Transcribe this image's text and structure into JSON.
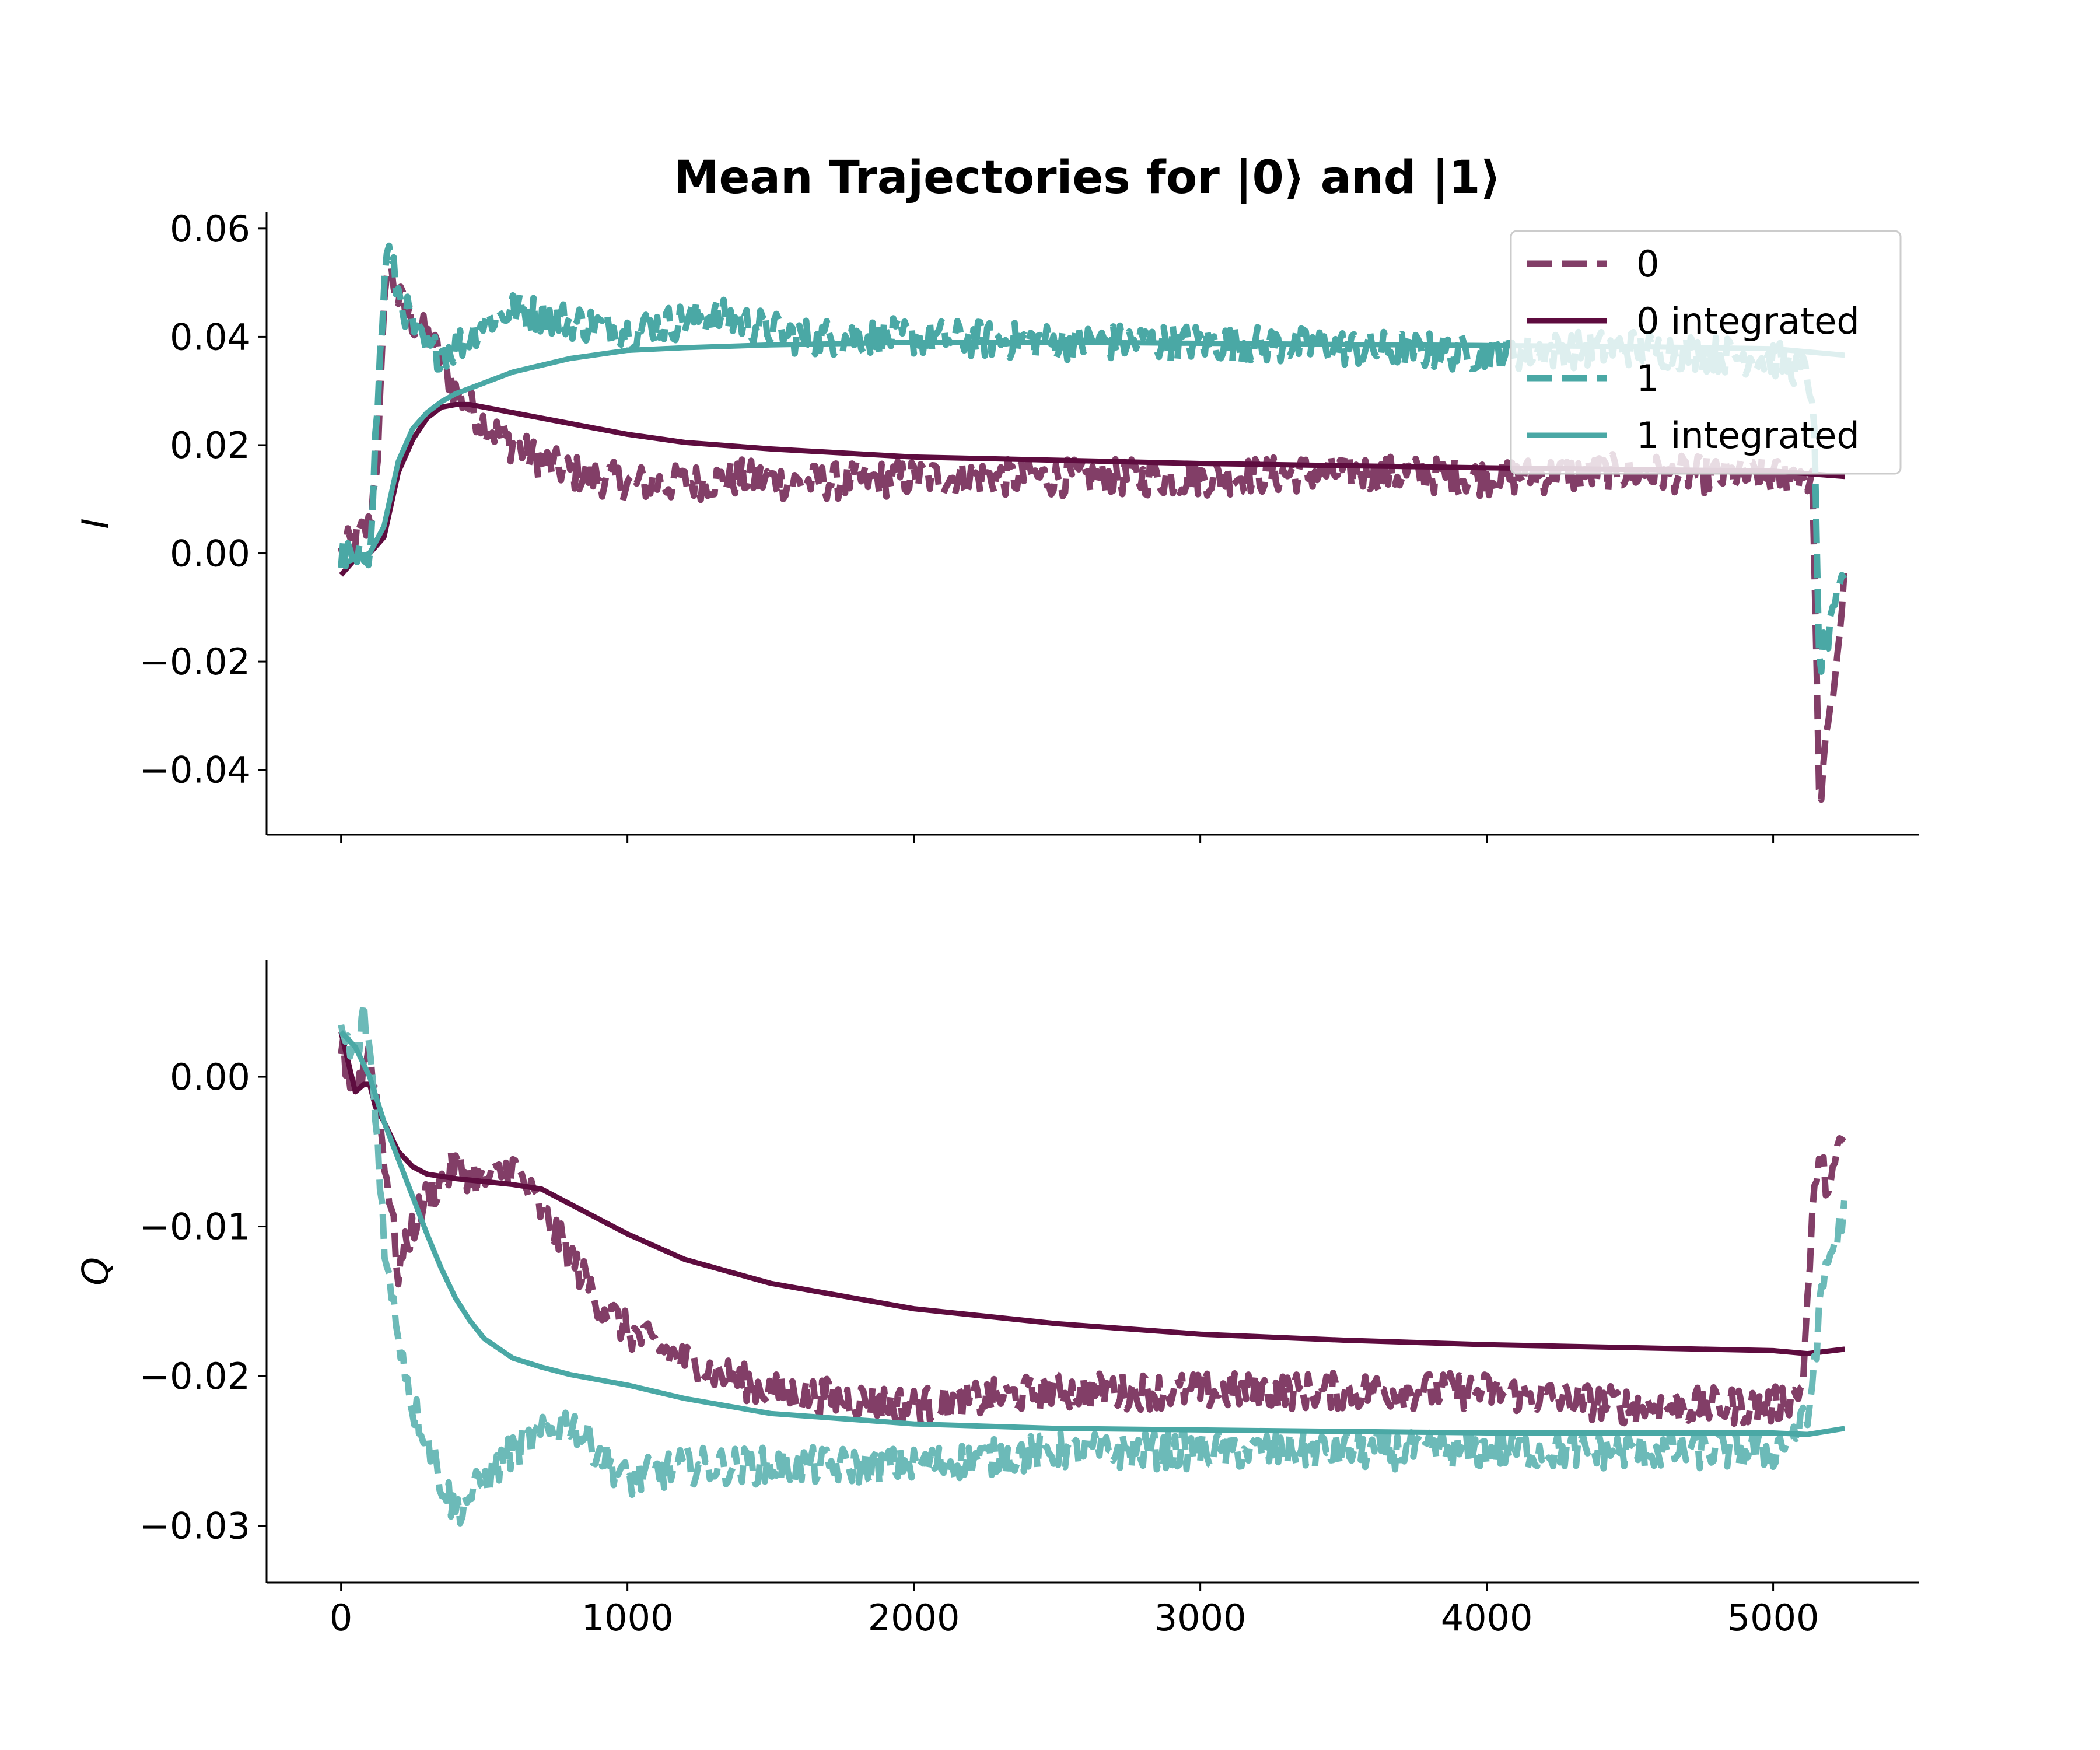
{
  "chart_data": {
    "type": "line",
    "title": "Mean Trajectories for |0⟩ and |1⟩",
    "legend_position": "top-right",
    "colors": {
      "zero": "#823e67",
      "zero_integrated": "#5e0c3f",
      "one": "#4aa8a5",
      "one_integrated": "#4aa8a5"
    },
    "legend": [
      {
        "label": "0",
        "style": "dashed",
        "color": "#823e67"
      },
      {
        "label": "0 integrated",
        "style": "solid",
        "color": "#5e0c3f"
      },
      {
        "label": "1",
        "style": "dashed",
        "color": "#4aa8a5"
      },
      {
        "label": "1 integrated",
        "style": "solid",
        "color": "#4aa8a5"
      }
    ],
    "xticks": [
      "0",
      "1000",
      "2000",
      "3000",
      "4000",
      "5000"
    ],
    "xlim": [
      -260,
      5510
    ],
    "panels": [
      {
        "ylabel": "I",
        "ylim": [
          -0.052,
          0.063
        ],
        "yticks": [
          "0.06",
          "0.04",
          "0.02",
          "0.00",
          "−0.02",
          "−0.04"
        ],
        "ytick_values": [
          0.06,
          0.04,
          0.02,
          0.0,
          -0.02,
          -0.04
        ],
        "series": [
          {
            "name": "0",
            "style": "dashed",
            "color": "#823e67",
            "x": [
              0,
              60,
              100,
              130,
              160,
              200,
              250,
              300,
              350,
              400,
              500,
              600,
              700,
              800,
              900,
              1000,
              1200,
              1400,
              1600,
              2000,
              2500,
              3000,
              3500,
              4000,
              4500,
              5000,
              5100,
              5140,
              5160,
              5200,
              5250
            ],
            "y": [
              0.0,
              0.003,
              0.005,
              0.02,
              0.054,
              0.047,
              0.043,
              0.04,
              0.036,
              0.03,
              0.024,
              0.02,
              0.017,
              0.015,
              0.014,
              0.013,
              0.013,
              0.014,
              0.013,
              0.014,
              0.014,
              0.014,
              0.015,
              0.014,
              0.015,
              0.014,
              0.015,
              0.012,
              -0.046,
              -0.03,
              -0.005
            ]
          },
          {
            "name": "0 integrated",
            "style": "solid",
            "color": "#5e0c3f",
            "x": [
              0,
              50,
              100,
              150,
              200,
              250,
              300,
              350,
              400,
              450,
              500,
              600,
              800,
              1000,
              1200,
              1500,
              2000,
              2500,
              3000,
              3500,
              4000,
              4500,
              5000,
              5250
            ],
            "y": [
              -0.004,
              -0.001,
              0.0,
              0.003,
              0.015,
              0.021,
              0.025,
              0.027,
              0.0275,
              0.0275,
              0.027,
              0.026,
              0.024,
              0.022,
              0.0205,
              0.0193,
              0.0178,
              0.0172,
              0.0166,
              0.0162,
              0.0158,
              0.0155,
              0.0152,
              0.0142
            ]
          },
          {
            "name": "1",
            "style": "dashed",
            "color": "#4aa8a5",
            "x": [
              0,
              60,
              100,
              130,
              160,
              200,
              250,
              300,
              400,
              500,
              600,
              800,
              1000,
              1300,
              1600,
              2000,
              2500,
              3000,
              3500,
              4000,
              4500,
              5000,
              5100,
              5140,
              5160,
              5200,
              5250
            ],
            "y": [
              0.0,
              -0.002,
              0.001,
              0.03,
              0.057,
              0.048,
              0.042,
              0.037,
              0.038,
              0.043,
              0.045,
              0.043,
              0.041,
              0.044,
              0.04,
              0.04,
              0.039,
              0.039,
              0.038,
              0.037,
              0.038,
              0.036,
              0.034,
              0.03,
              -0.02,
              -0.015,
              -0.003
            ]
          },
          {
            "name": "1 integrated",
            "style": "solid",
            "color": "#4aa8a5",
            "x": [
              0,
              50,
              100,
              150,
              200,
              250,
              300,
              350,
              400,
              500,
              600,
              800,
              1000,
              1200,
              1500,
              2000,
              2500,
              3000,
              3500,
              4000,
              4500,
              5000,
              5250
            ],
            "y": [
              -0.002,
              -0.001,
              0.0,
              0.005,
              0.017,
              0.023,
              0.026,
              0.028,
              0.0295,
              0.0315,
              0.0335,
              0.036,
              0.0375,
              0.038,
              0.0385,
              0.039,
              0.039,
              0.0388,
              0.0386,
              0.0384,
              0.0382,
              0.0378,
              0.0366
            ]
          }
        ]
      },
      {
        "ylabel": "Q",
        "ylim": [
          -0.0338,
          0.0078
        ],
        "yticks": [
          "0.00",
          "−0.01",
          "−0.02",
          "−0.03"
        ],
        "ytick_values": [
          0.0,
          -0.01,
          -0.02,
          -0.03
        ],
        "series": [
          {
            "name": "0",
            "style": "dashed",
            "color": "#823e67",
            "x": [
              0,
              50,
              100,
              150,
              200,
              250,
              300,
              350,
              400,
              500,
              600,
              700,
              800,
              900,
              1000,
              1200,
              1500,
              2000,
              2500,
              3000,
              3500,
              4000,
              4500,
              5000,
              5100,
              5150,
              5200,
              5250
            ],
            "y": [
              0.002,
              -0.001,
              0.002,
              -0.005,
              -0.013,
              -0.01,
              -0.008,
              -0.007,
              -0.006,
              -0.007,
              -0.006,
              -0.009,
              -0.012,
              -0.015,
              -0.017,
              -0.019,
              -0.021,
              -0.022,
              -0.021,
              -0.021,
              -0.021,
              -0.021,
              -0.022,
              -0.022,
              -0.021,
              -0.006,
              -0.007,
              -0.004
            ]
          },
          {
            "name": "0 integrated",
            "style": "solid",
            "color": "#5e0c3f",
            "x": [
              0,
              50,
              80,
              100,
              120,
              150,
              200,
              250,
              300,
              400,
              500,
              600,
              700,
              800,
              1000,
              1200,
              1500,
              2000,
              2500,
              3000,
              3500,
              4000,
              4500,
              5000,
              5120,
              5250
            ],
            "y": [
              0.003,
              -0.001,
              -0.0005,
              -0.0005,
              -0.002,
              -0.003,
              -0.005,
              -0.006,
              -0.0065,
              -0.0068,
              -0.007,
              -0.0072,
              -0.0075,
              -0.0085,
              -0.0105,
              -0.0122,
              -0.0138,
              -0.0155,
              -0.0165,
              -0.0172,
              -0.0176,
              -0.0179,
              -0.0181,
              -0.0183,
              -0.0185,
              -0.0182
            ]
          },
          {
            "name": "1",
            "style": "dashed",
            "color": "#6cbab8",
            "x": [
              0,
              50,
              80,
              100,
              130,
              160,
              200,
              250,
              300,
              350,
              400,
              500,
              600,
              700,
              800,
              900,
              1000,
              1200,
              1500,
              2000,
              2500,
              3000,
              3500,
              4000,
              4500,
              5000,
              5120,
              5180,
              5250
            ],
            "y": [
              0.003,
              0.001,
              0.004,
              0.002,
              -0.005,
              -0.013,
              -0.017,
              -0.022,
              -0.024,
              -0.027,
              -0.029,
              -0.027,
              -0.025,
              -0.024,
              -0.023,
              -0.025,
              -0.027,
              -0.026,
              -0.026,
              -0.026,
              -0.025,
              -0.025,
              -0.025,
              -0.025,
              -0.025,
              -0.025,
              -0.023,
              -0.013,
              -0.009
            ]
          },
          {
            "name": "1 integrated",
            "style": "solid",
            "color": "#4aa8a5",
            "x": [
              0,
              50,
              100,
              150,
              200,
              250,
              300,
              350,
              400,
              450,
              500,
              600,
              700,
              800,
              1000,
              1200,
              1500,
              2000,
              2500,
              3000,
              3500,
              4000,
              4500,
              5000,
              5120,
              5250
            ],
            "y": [
              0.003,
              0.002,
              0.0,
              -0.003,
              -0.0055,
              -0.008,
              -0.0105,
              -0.0128,
              -0.0148,
              -0.0163,
              -0.0175,
              -0.0188,
              -0.0194,
              -0.0199,
              -0.0206,
              -0.0215,
              -0.0225,
              -0.0232,
              -0.0235,
              -0.0236,
              -0.0237,
              -0.0238,
              -0.0238,
              -0.0238,
              -0.0239,
              -0.0235
            ]
          }
        ]
      }
    ]
  }
}
